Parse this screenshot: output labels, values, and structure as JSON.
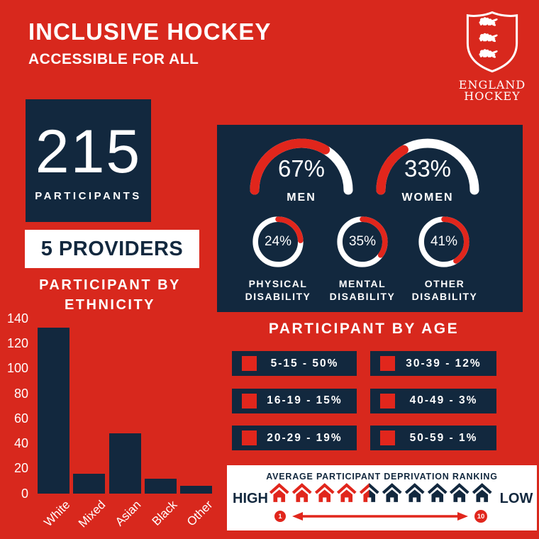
{
  "colors": {
    "background_red": "#d8281d",
    "accent_red": "#e1261c",
    "navy": "#12283e",
    "white": "#ffffff"
  },
  "header": {
    "title": "INCLUSIVE HOCKEY",
    "subtitle": "ACCESSIBLE FOR ALL"
  },
  "logo": {
    "icon": "england-hockey-three-lions-shield",
    "org_line1": "ENGLAND",
    "org_line2": "HOCKEY"
  },
  "stats": {
    "participants_value": "215",
    "participants_label": "PARTICIPANTS",
    "providers": "5 PROVIDERS"
  },
  "chart_data": [
    {
      "id": "ethnicity",
      "type": "bar",
      "title": "PARTICIPANT BY ETHNICITY",
      "title_lines": [
        "PARTICIPANT BY",
        "ETHNICITY"
      ],
      "categories": [
        "White",
        "Mixed",
        "Asian",
        "Black",
        "Other"
      ],
      "values": [
        133,
        16,
        48,
        12,
        6
      ],
      "xlabel": "",
      "ylabel": "",
      "ylim": [
        0,
        140
      ],
      "yticks": [
        0,
        20,
        40,
        60,
        80,
        100,
        120,
        140
      ],
      "grid": false,
      "bar_color": "#12283e"
    },
    {
      "id": "gender",
      "type": "gauge",
      "series": [
        {
          "label": "MEN",
          "value": 67,
          "display": "67%"
        },
        {
          "label": "WOMEN",
          "value": 33,
          "display": "33%"
        }
      ]
    },
    {
      "id": "disability",
      "type": "donut",
      "series": [
        {
          "label": "PHYSICAL DISABILITY",
          "label_lines": [
            "PHYSICAL",
            "DISABILITY"
          ],
          "value": 24,
          "display": "24%"
        },
        {
          "label": "MENTAL DISABILITY",
          "label_lines": [
            "MENTAL",
            "DISABILITY"
          ],
          "value": 35,
          "display": "35%"
        },
        {
          "label": "OTHER DISABILITY",
          "label_lines": [
            "OTHER",
            "DISABILITY"
          ],
          "value": 41,
          "display": "41%"
        }
      ]
    },
    {
      "id": "age",
      "type": "list",
      "title": "PARTICIPANT BY AGE",
      "items": [
        {
          "range": "5-15",
          "percent": 50,
          "label": "5-15 - 50%"
        },
        {
          "range": "16-19",
          "percent": 15,
          "label": "16-19 - 15%"
        },
        {
          "range": "20-29",
          "percent": 19,
          "label": "20-29 - 19%"
        },
        {
          "range": "30-39",
          "percent": 12,
          "label": "30-39 - 12%"
        },
        {
          "range": "40-49",
          "percent": 3,
          "label": "40-49 - 3%"
        },
        {
          "range": "50-59",
          "percent": 1,
          "label": "50-59 - 1%"
        }
      ]
    },
    {
      "id": "deprivation",
      "type": "scale",
      "title": "AVERAGE PARTICIPANT DEPRIVATION RANKING",
      "left_label": "HIGH",
      "right_label": "LOW",
      "scale_min": "1",
      "scale_max": "10",
      "houses_total": 10,
      "houses_highlighted": 4.5
    }
  ]
}
